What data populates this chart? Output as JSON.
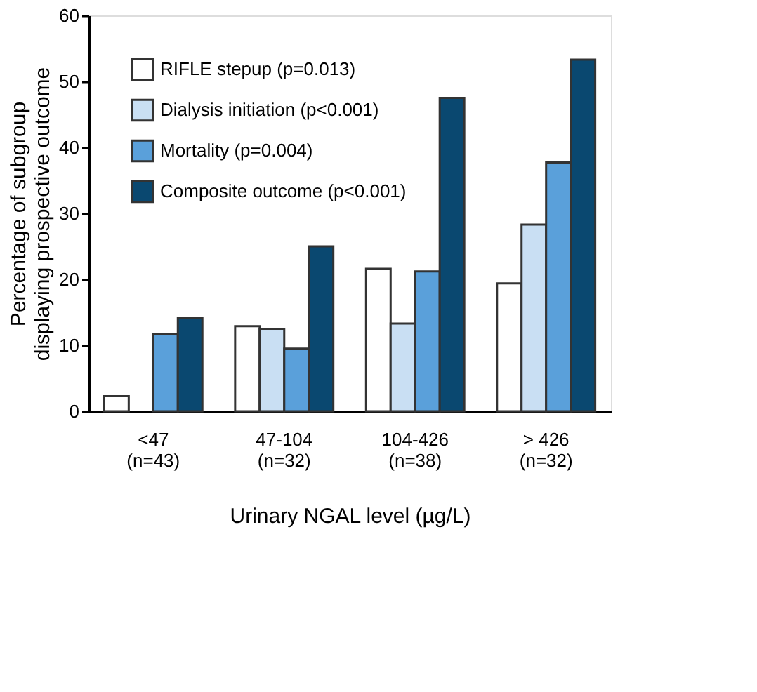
{
  "chart_data": {
    "type": "bar",
    "categories": [
      "<47\n(n=43)",
      "47-104\n(n=32)",
      "104-426\n(n=38)",
      "> 426\n(n=32)"
    ],
    "series": [
      {
        "name": "RIFLE stepup (p=0.013)",
        "color": "#ffffff",
        "values": [
          2.3,
          12.9,
          21.6,
          19.4
        ]
      },
      {
        "name": "Dialysis initiation (p<0.001)",
        "color": "#c9dff3",
        "values": [
          null,
          12.5,
          13.3,
          28.3
        ]
      },
      {
        "name": "Mortality (p=0.004)",
        "color": "#5aa0da",
        "values": [
          11.7,
          9.5,
          21.2,
          37.7
        ]
      },
      {
        "name": "Composite outcome (p<0.001)",
        "color": "#0a4870",
        "values": [
          14.1,
          25,
          47.5,
          53.3
        ]
      }
    ],
    "xlabel": "Urinary NGAL level (µg/L)",
    "ylabel": "Percentage of subgroup displaying prospective outcome",
    "ylim": [
      0,
      60
    ],
    "yticks": [
      0,
      10,
      20,
      30,
      40,
      50,
      60
    ],
    "grid": false,
    "legend": "top left"
  }
}
